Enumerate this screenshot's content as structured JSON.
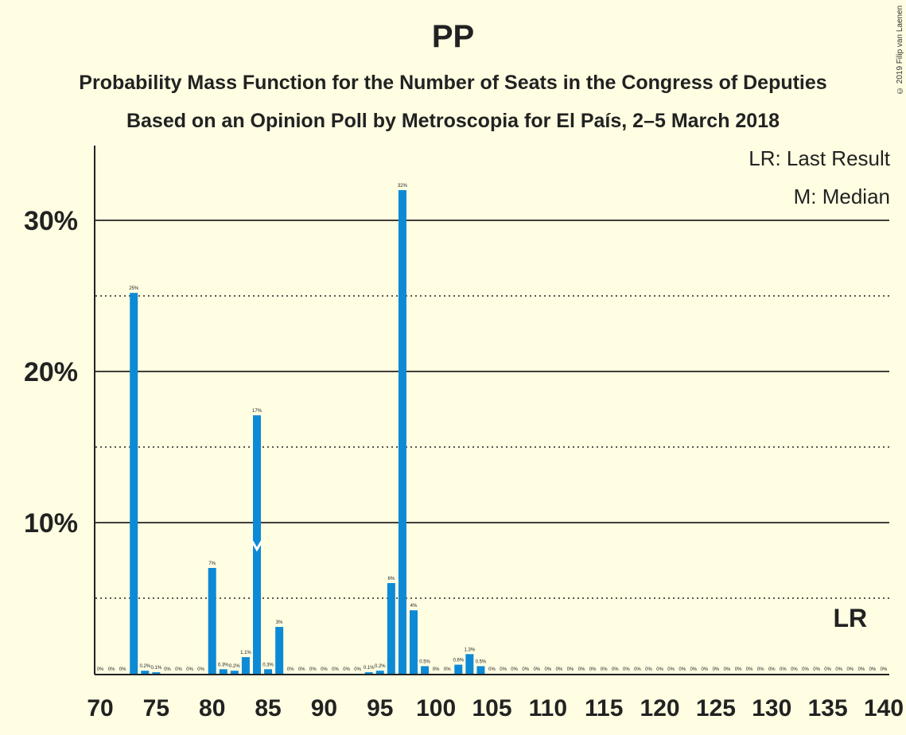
{
  "title": "PP",
  "subtitle_1": "Probability Mass Function for the Number of Seats in the Congress of Deputies",
  "subtitle_2": "Based on an Opinion Poll by Metroscopia for El País, 2–5 March 2018",
  "copyright": "© 2019 Filip van Laenen",
  "legend": {
    "lr": "LR: Last Result",
    "m": "M: Median"
  },
  "colors": {
    "bar": "#0d8ad6",
    "background": "#fffde2",
    "text": "#222222"
  },
  "chart_data": {
    "type": "bar",
    "title": "PP",
    "xlabel": "",
    "ylabel": "",
    "xlim": [
      70,
      140
    ],
    "ylim": [
      0,
      35
    ],
    "x_ticks": [
      70,
      75,
      80,
      85,
      90,
      95,
      100,
      105,
      110,
      115,
      120,
      125,
      130,
      135,
      140
    ],
    "y_ticks_major": [
      {
        "value": 10,
        "label": "10%"
      },
      {
        "value": 20,
        "label": "20%"
      },
      {
        "value": 30,
        "label": "30%"
      }
    ],
    "y_ticks_minor": [
      5,
      15,
      25
    ],
    "x": [
      70,
      71,
      72,
      73,
      74,
      75,
      76,
      77,
      78,
      79,
      80,
      81,
      82,
      83,
      84,
      85,
      86,
      87,
      88,
      89,
      90,
      91,
      92,
      93,
      94,
      95,
      96,
      97,
      98,
      99,
      100,
      101,
      102,
      103,
      104,
      105,
      106,
      107,
      108,
      109,
      110,
      111,
      112,
      113,
      114,
      115,
      116,
      117,
      118,
      119,
      120,
      121,
      122,
      123,
      124,
      125,
      126,
      127,
      128,
      129,
      130,
      131,
      132,
      133,
      134,
      135,
      136,
      137,
      138,
      139,
      140
    ],
    "values": [
      0,
      0,
      0,
      25.2,
      0.2,
      0.1,
      0,
      0,
      0,
      0,
      7.0,
      0.3,
      0.2,
      1.1,
      17.1,
      0.3,
      3.1,
      0,
      0,
      0,
      0,
      0,
      0,
      0,
      0.1,
      0.2,
      6.0,
      32.0,
      4.2,
      0.5,
      0,
      0,
      0.6,
      1.3,
      0.5,
      0,
      0,
      0,
      0,
      0,
      0,
      0,
      0,
      0,
      0,
      0,
      0,
      0,
      0,
      0,
      0,
      0,
      0,
      0,
      0,
      0,
      0,
      0,
      0,
      0,
      0,
      0,
      0,
      0,
      0,
      0,
      0,
      0,
      0,
      0,
      0
    ],
    "labels": [
      "0%",
      "0%",
      "0%",
      "25%",
      "0.2%",
      "0.1%",
      "0%",
      "0%",
      "0%",
      "0%",
      "7%",
      "0.3%",
      "0.2%",
      "1.1%",
      "17%",
      "0.3%",
      "3%",
      "0%",
      "0%",
      "0%",
      "0%",
      "0%",
      "0%",
      "0%",
      "0.1%",
      "0.2%",
      "6%",
      "32%",
      "4%",
      "0.5%",
      "0%",
      "0%",
      "0.6%",
      "1.3%",
      "0.5%",
      "0%",
      "0%",
      "0%",
      "0%",
      "0%",
      "0%",
      "0%",
      "0%",
      "0%",
      "0%",
      "0%",
      "0%",
      "0%",
      "0%",
      "0%",
      "0%",
      "0%",
      "0%",
      "0%",
      "0%",
      "0%",
      "0%",
      "0%",
      "0%",
      "0%",
      "0%",
      "0%",
      "0%",
      "0%",
      "0%",
      "0%",
      "0%",
      "0%",
      "0%",
      "0%",
      "0%"
    ],
    "median": 84,
    "median_marker": "M",
    "last_result": 137,
    "last_result_marker": "LR"
  }
}
